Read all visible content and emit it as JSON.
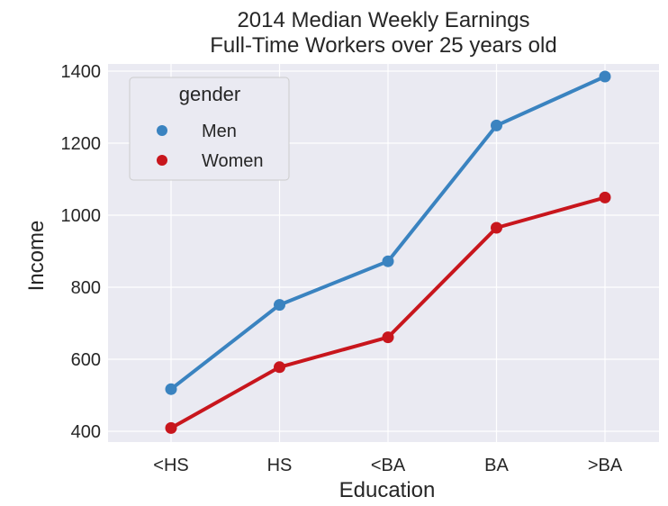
{
  "chart_data": {
    "type": "line",
    "title": "2014 Median Weekly Earnings\nFull-Time Workers over 25 years old",
    "title_lines": [
      "2014 Median Weekly Earnings",
      "Full-Time Workers over 25 years old"
    ],
    "xlabel": "Education",
    "ylabel": "Income",
    "categories": [
      "<HS",
      "HS",
      "<BA",
      "BA",
      ">BA"
    ],
    "yticks": [
      400,
      600,
      800,
      1000,
      1200,
      1400
    ],
    "ylim": [
      370,
      1420
    ],
    "grid": true,
    "legend": {
      "title": "gender",
      "placement": "top-left"
    },
    "series": [
      {
        "name": "Men",
        "color": "#3a83c0",
        "values": [
          517,
          751,
          872,
          1249,
          1385
        ]
      },
      {
        "name": "Women",
        "color": "#c8161d",
        "values": [
          409,
          578,
          661,
          965,
          1049
        ]
      }
    ]
  },
  "colors": {
    "background": "#eaeaf2",
    "grid": "#ffffff",
    "text": "#262626"
  }
}
